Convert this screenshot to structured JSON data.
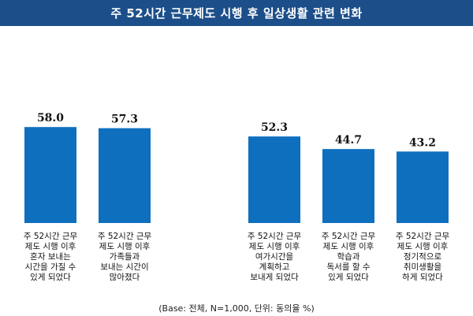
{
  "title": "주 52시간 근무제도 시행 후 일상생활 관련 변화",
  "footnote": "(Base: 전체, N=1,000, 단위: 동의율 %)",
  "colors": {
    "title_bg": "#1c4f8a",
    "bar": "#0e6fbf"
  },
  "chart_data": {
    "type": "bar",
    "categories": [
      "주 52시간 근무\n제도 시행 이후\n혼자 보내는\n시간을 가질 수\n있게 되었다",
      "주 52시간 근무\n제도 시행 이후\n가족들과\n보내는 시간이\n많아졌다",
      "주 52시간 근무\n제도 시행 이후\n여가시간을\n계획하고\n보내게 되었다",
      "주 52시간 근무\n제도 시행 이후\n학습과\n독서를 할 수\n있게 되었다",
      "주 52시간 근무\n제도 시행 이후\n정기적으로\n취미생활을\n하게 되었다"
    ],
    "values": [
      58.0,
      57.3,
      52.3,
      44.7,
      43.2
    ],
    "value_labels": [
      "58.0",
      "57.3",
      "52.3",
      "44.7",
      "43.2"
    ],
    "ylim": [
      0,
      80
    ],
    "grid": false
  }
}
